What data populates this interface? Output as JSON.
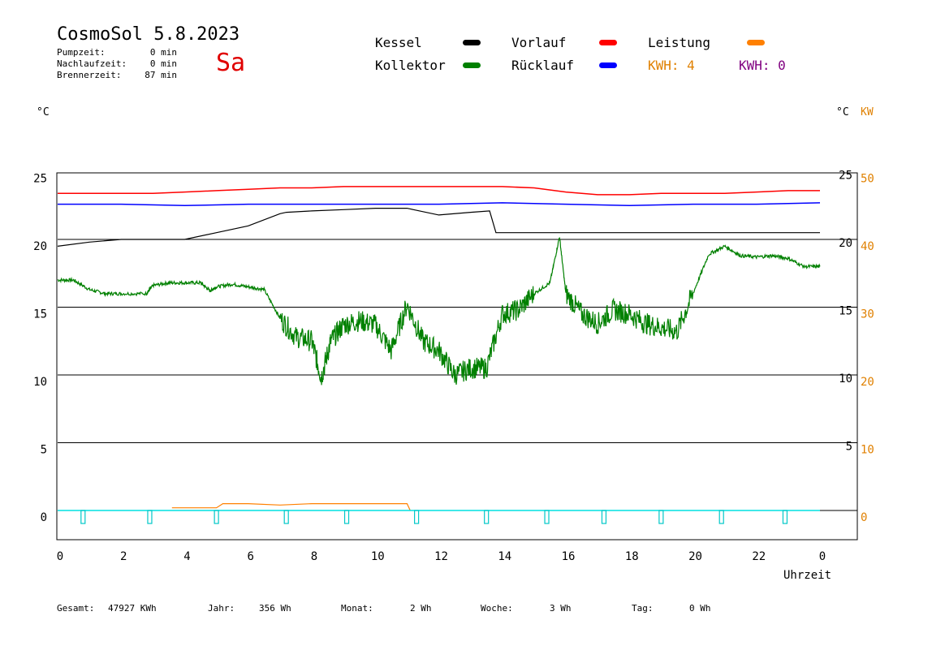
{
  "header": {
    "title": "CosmoSol 5.8.2023",
    "day": "Sa",
    "stats": [
      {
        "label": "Pumpzeit:",
        "value": "0 min"
      },
      {
        "label": "Nachlaufzeit:",
        "value": "0 min"
      },
      {
        "label": "Brennerzeit:",
        "value": "87 min"
      }
    ]
  },
  "legend": {
    "kessel": {
      "label": "Kessel",
      "color": "#000000"
    },
    "vorlauf": {
      "label": "Vorlauf",
      "color": "#ff0000"
    },
    "leistung": {
      "label": "Leistung",
      "color": "#ff8000"
    },
    "kollektor": {
      "label": "Kollektor",
      "color": "#008000"
    },
    "ruecklauf": {
      "label": "Rücklauf",
      "color": "#0000ff"
    },
    "kwh_solar": {
      "label": "KWH: 4",
      "color": "#e08000"
    },
    "kwh_burner": {
      "label": "KWH: 0",
      "color": "#800080"
    }
  },
  "axes": {
    "left_unit": "°C",
    "right_unit": "°C",
    "right_unit2": "KW",
    "x_label": "Uhrzeit"
  },
  "footer": {
    "gesamt_label": "Gesamt:",
    "gesamt_value": "47927 KWh",
    "jahr_label": "Jahr:",
    "jahr_value": "356 Wh",
    "monat_label": "Monat:",
    "monat_value": "2 Wh",
    "woche_label": "Woche:",
    "woche_value": "3 Wh",
    "tag_label": "Tag:",
    "tag_value": "0 Wh"
  },
  "chart_data": {
    "type": "line",
    "xlabel": "Uhrzeit",
    "ylabel": "°C",
    "xlim": [
      0,
      24
    ],
    "ylim_left": [
      -2,
      25
    ],
    "ylim_right_kw": [
      -4,
      50
    ],
    "x_ticks": [
      "0",
      "2",
      "4",
      "6",
      "8",
      "10",
      "12",
      "14",
      "16",
      "18",
      "20",
      "22",
      "0"
    ],
    "y_left_ticks": [
      0,
      5,
      10,
      15,
      20,
      25
    ],
    "y_right_inner_ticks": [
      5,
      10,
      15,
      20,
      25
    ],
    "y_right_kw_ticks": [
      0,
      10,
      20,
      30,
      40,
      50
    ],
    "grid_y": [
      0,
      5,
      10,
      15,
      20
    ],
    "series": [
      {
        "name": "Vorlauf",
        "color": "#ff0000",
        "x": [
          0,
          1,
          2,
          3,
          4,
          5,
          6,
          7,
          8,
          9,
          10,
          11,
          12,
          13,
          14,
          15,
          16,
          17,
          18,
          19,
          20,
          21,
          22,
          23,
          24
        ],
        "y": [
          23.4,
          23.4,
          23.4,
          23.4,
          23.5,
          23.6,
          23.7,
          23.8,
          23.8,
          23.9,
          23.9,
          23.9,
          23.9,
          23.9,
          23.9,
          23.8,
          23.5,
          23.3,
          23.3,
          23.4,
          23.4,
          23.4,
          23.5,
          23.6,
          23.6
        ]
      },
      {
        "name": "Rücklauf",
        "color": "#0000ff",
        "x": [
          0,
          2,
          4,
          6,
          8,
          10,
          12,
          14,
          16,
          18,
          20,
          22,
          24
        ],
        "y": [
          22.6,
          22.6,
          22.5,
          22.6,
          22.6,
          22.6,
          22.6,
          22.7,
          22.6,
          22.5,
          22.6,
          22.6,
          22.7
        ]
      },
      {
        "name": "Kessel",
        "color": "#000000",
        "x": [
          0,
          1,
          2,
          3,
          4,
          5,
          6,
          7,
          7.2,
          8,
          9,
          10,
          11,
          11.2,
          12,
          13,
          13.6,
          13.8,
          14,
          16,
          18,
          20,
          22,
          24
        ],
        "y": [
          19.5,
          19.8,
          20.0,
          20.0,
          20.0,
          20.5,
          21.0,
          21.9,
          22.0,
          22.1,
          22.2,
          22.3,
          22.3,
          22.2,
          21.8,
          22.0,
          22.1,
          20.5,
          20.5,
          20.5,
          20.5,
          20.5,
          20.5,
          20.5
        ]
      },
      {
        "name": "Kollektor",
        "color": "#008000",
        "x": [
          0,
          0.5,
          1,
          1.5,
          2,
          2.8,
          3,
          3.5,
          4,
          4.5,
          4.8,
          5,
          5.5,
          6,
          6.5,
          7,
          7.5,
          8,
          8.3,
          8.6,
          9,
          9.5,
          10,
          10.5,
          11,
          11.5,
          12,
          12.5,
          13,
          13.5,
          14,
          14.5,
          15,
          15.5,
          15.8,
          16,
          16.5,
          17,
          17.5,
          18,
          18.5,
          19,
          19.5,
          20,
          20.5,
          21,
          21.5,
          22,
          22.5,
          23,
          23.5,
          24
        ],
        "y": [
          17,
          17,
          16.3,
          16,
          16,
          16,
          16.6,
          16.8,
          16.8,
          16.8,
          16.2,
          16.5,
          16.7,
          16.5,
          16.3,
          14.2,
          12.8,
          12.5,
          9.8,
          12.5,
          13.7,
          14,
          13.7,
          11.8,
          15.2,
          12.5,
          11.8,
          10,
          10.5,
          10.5,
          14.5,
          14.8,
          16,
          16.8,
          20.2,
          16,
          14.5,
          13.8,
          14.8,
          14.5,
          13.8,
          13.5,
          13.2,
          16,
          18.9,
          19.5,
          18.8,
          18.7,
          18.8,
          18.6,
          18,
          18
        ]
      },
      {
        "name": "Leistung",
        "color": "#ff8000",
        "x": [
          3.6,
          5,
          5.2,
          6,
          7,
          8,
          9,
          10,
          11,
          11.1
        ],
        "y": [
          0.2,
          0.2,
          0.5,
          0.5,
          0.4,
          0.5,
          0.5,
          0.5,
          0.5,
          0
        ]
      }
    ]
  }
}
